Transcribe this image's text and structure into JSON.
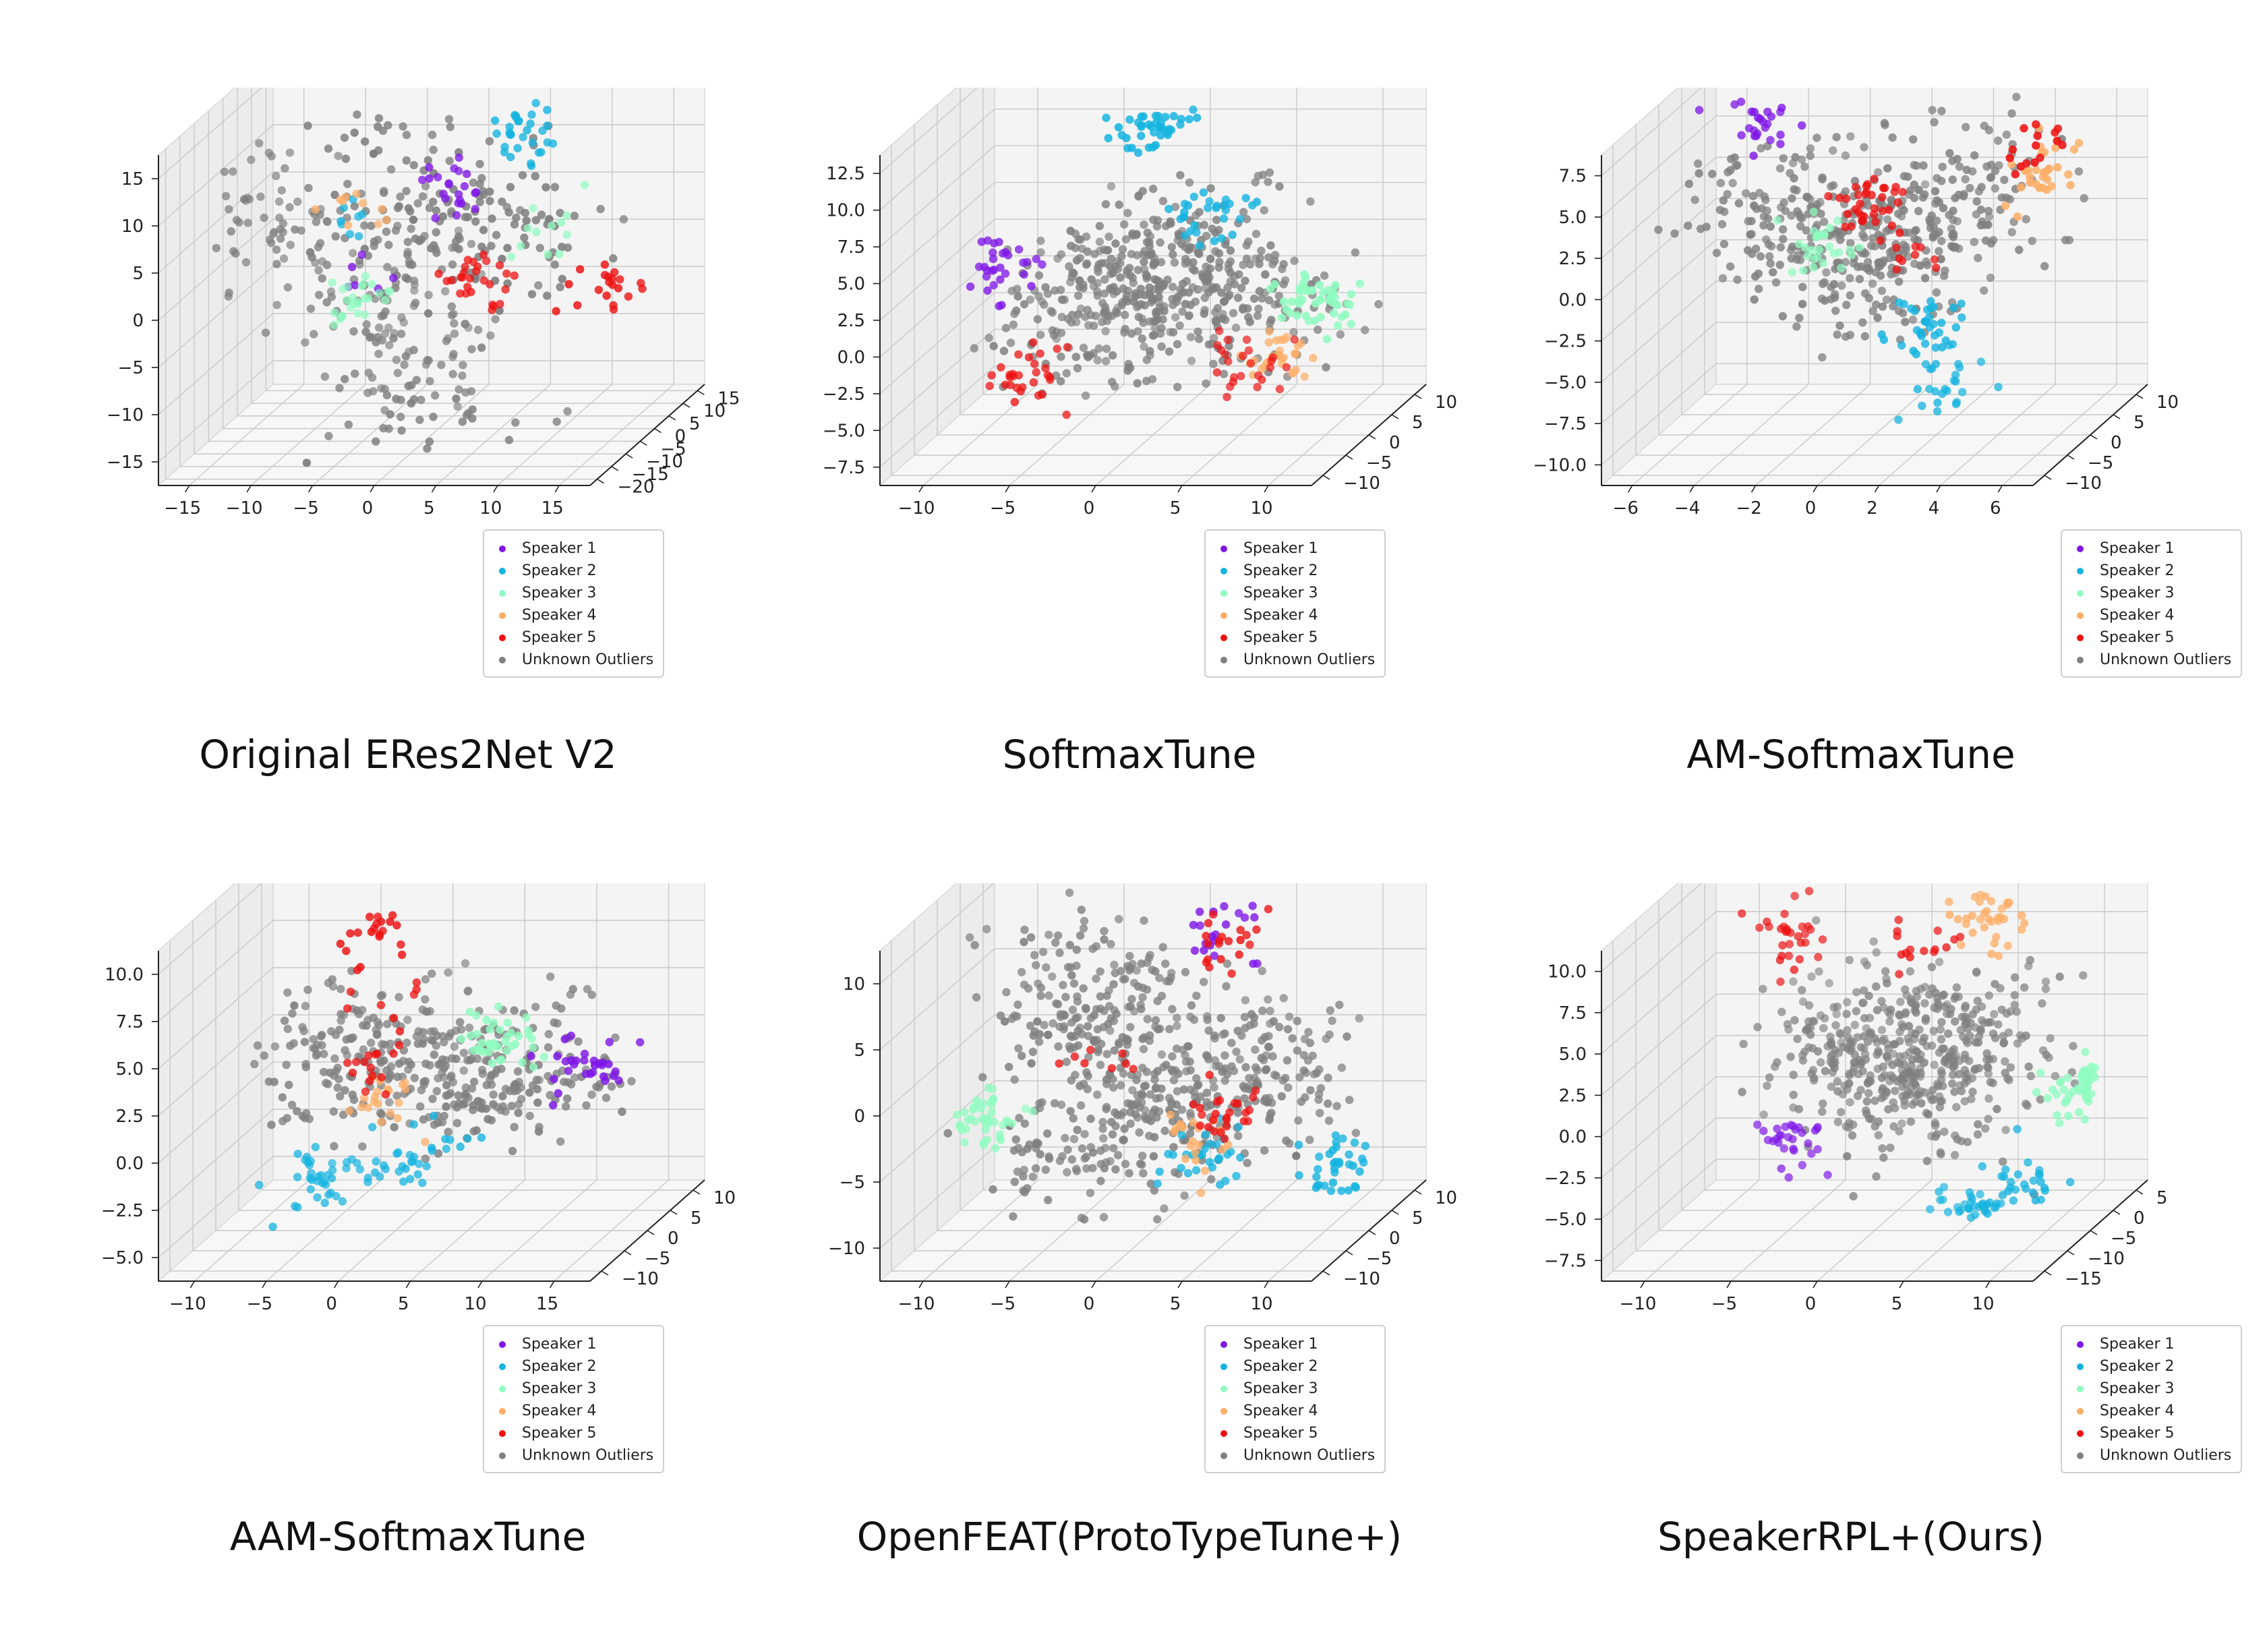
{
  "colors": {
    "Speaker 1": "#7f17e8",
    "Speaker 2": "#15b4e0",
    "Speaker 3": "#8ffcc0",
    "Speaker 4": "#ffae66",
    "Speaker 5": "#ee1111",
    "Unknown Outliers": "#808080"
  },
  "legend": [
    "Speaker 1",
    "Speaker 2",
    "Speaker 3",
    "Speaker 4",
    "Speaker 5",
    "Unknown Outliers"
  ],
  "chart_data": [
    {
      "type": "scatter",
      "title": "Original ERes2Net V2",
      "ticks": {
        "x": [
          "−15",
          "−10",
          "−5",
          "0",
          "5",
          "10",
          "15"
        ],
        "y": [
          "−20",
          "−15",
          "−10",
          "−5",
          "0",
          "5",
          "10",
          "15"
        ],
        "z": [
          "−15",
          "−10",
          "−5",
          "0",
          "5",
          "10",
          "15"
        ]
      },
      "xlim": [
        -18,
        18
      ],
      "ylim": [
        -22,
        18
      ],
      "zlim": [
        -18,
        18
      ],
      "series": [
        {
          "name": "Speaker 1",
          "clusters": [
            {
              "x": 2,
              "y": -2,
              "z": 9,
              "n": 22
            },
            {
              "x": -5,
              "y": -3,
              "z": 0,
              "n": 6
            }
          ]
        },
        {
          "name": "Speaker 2",
          "clusters": [
            {
              "x": 8,
              "y": -3,
              "z": 15,
              "n": 30
            },
            {
              "x": -8,
              "y": 1,
              "z": 5,
              "n": 8
            }
          ]
        },
        {
          "name": "Speaker 3",
          "clusters": [
            {
              "x": -8,
              "y": 5,
              "z": -5,
              "n": 26
            },
            {
              "x": 8,
              "y": 2,
              "z": 3,
              "n": 12
            }
          ]
        },
        {
          "name": "Speaker 4",
          "clusters": [
            {
              "x": -7,
              "y": 2,
              "z": 6,
              "n": 10
            }
          ]
        },
        {
          "name": "Speaker 5",
          "clusters": [
            {
              "x": 3,
              "y": 0,
              "z": -2,
              "n": 28
            },
            {
              "x": 15,
              "y": -5,
              "z": -1,
              "n": 20
            }
          ]
        },
        {
          "name": "Unknown Outliers",
          "clusters": [
            {
              "x": -14,
              "y": 3,
              "z": 4,
              "n": 60
            },
            {
              "x": -2,
              "y": -8,
              "z": 14,
              "n": 40
            },
            {
              "x": -4,
              "y": 4,
              "z": -8,
              "n": 80
            },
            {
              "x": 0,
              "y": -4,
              "z": -12,
              "n": 50
            },
            {
              "x": 7,
              "y": -10,
              "z": 6,
              "n": 90
            },
            {
              "x": -3,
              "y": -4,
              "z": 4,
              "n": 60
            }
          ]
        }
      ]
    },
    {
      "type": "scatter",
      "title": "SoftmaxTune",
      "ticks": {
        "x": [
          "−10",
          "−5",
          "0",
          "5",
          "10"
        ],
        "y": [
          "−10",
          "−5",
          "0",
          "5",
          "10"
        ],
        "z": [
          "−7.5",
          "−5.0",
          "−2.5",
          "0.0",
          "2.5",
          "5.0",
          "7.5",
          "10.0",
          "12.5"
        ]
      },
      "xlim": [
        -13,
        13
      ],
      "ylim": [
        -13,
        13
      ],
      "zlim": [
        -8.5,
        14
      ],
      "series": [
        {
          "name": "Speaker 1",
          "clusters": [
            {
              "x": -9,
              "y": 0,
              "z": 3,
              "n": 30
            }
          ]
        },
        {
          "name": "Speaker 2",
          "clusters": [
            {
              "x": 1,
              "y": -4,
              "z": 14,
              "n": 40
            },
            {
              "x": 4,
              "y": -2,
              "z": 7,
              "n": 30
            }
          ]
        },
        {
          "name": "Speaker 3",
          "clusters": [
            {
              "x": 11,
              "y": -4,
              "z": 2,
              "n": 50
            }
          ]
        },
        {
          "name": "Speaker 4",
          "clusters": [
            {
              "x": 7,
              "y": 3,
              "z": -4,
              "n": 30
            }
          ]
        },
        {
          "name": "Speaker 5",
          "clusters": [
            {
              "x": -8,
              "y": 2,
              "z": -5,
              "n": 30
            },
            {
              "x": 4,
              "y": 5,
              "z": -5,
              "n": 25
            }
          ]
        },
        {
          "name": "Unknown Outliers",
          "clusters": [
            {
              "x": -2,
              "y": 0,
              "z": 2,
              "n": 150
            },
            {
              "x": 3,
              "y": -3,
              "z": 4,
              "n": 150
            },
            {
              "x": -4,
              "y": 3,
              "z": -2,
              "n": 100
            },
            {
              "x": 6,
              "y": 0,
              "z": 0,
              "n": 100
            }
          ]
        }
      ]
    },
    {
      "type": "scatter",
      "title": "AM-SoftmaxTune",
      "ticks": {
        "x": [
          "−6",
          "−4",
          "−2",
          "0",
          "2",
          "4",
          "6"
        ],
        "y": [
          "−10",
          "−5",
          "0",
          "5",
          "10"
        ],
        "z": [
          "−10.0",
          "−7.5",
          "−5.0",
          "−2.5",
          "0.0",
          "2.5",
          "5.0",
          "7.5"
        ]
      },
      "xlim": [
        -7,
        7
      ],
      "ylim": [
        -12,
        12
      ],
      "zlim": [
        -10.5,
        9
      ],
      "series": [
        {
          "name": "Speaker 1",
          "clusters": [
            {
              "x": -4,
              "y": 0,
              "z": 8,
              "n": 25
            }
          ]
        },
        {
          "name": "Speaker 2",
          "clusters": [
            {
              "x": 2,
              "y": -2,
              "z": -4,
              "n": 35
            },
            {
              "x": 2,
              "y": 2,
              "z": -8,
              "n": 25
            }
          ]
        },
        {
          "name": "Speaker 3",
          "clusters": [
            {
              "x": -2,
              "y": 2,
              "z": 0,
              "n": 30
            }
          ]
        },
        {
          "name": "Speaker 4",
          "clusters": [
            {
              "x": 6,
              "y": -4,
              "z": 6,
              "n": 30
            }
          ]
        },
        {
          "name": "Speaker 5",
          "clusters": [
            {
              "x": 0,
              "y": 0,
              "z": 3,
              "n": 35
            },
            {
              "x": 6,
              "y": -6,
              "z": 8,
              "n": 15
            },
            {
              "x": 1,
              "y": 1,
              "z": 0,
              "n": 10
            }
          ]
        },
        {
          "name": "Unknown Outliers",
          "clusters": [
            {
              "x": -3,
              "y": 0,
              "z": 3,
              "n": 120
            },
            {
              "x": 0,
              "y": 0,
              "z": 0,
              "n": 200
            },
            {
              "x": 3,
              "y": -2,
              "z": 4,
              "n": 120
            }
          ]
        }
      ]
    },
    {
      "type": "scatter",
      "title": "AAM-SoftmaxTune",
      "ticks": {
        "x": [
          "−10",
          "−5",
          "0",
          "5",
          "10",
          "15"
        ],
        "y": [
          "−10",
          "−5",
          "0",
          "5",
          "10"
        ],
        "z": [
          "−5.0",
          "−2.5",
          "0.0",
          "2.5",
          "5.0",
          "7.5",
          "10.0"
        ]
      },
      "xlim": [
        -12,
        16
      ],
      "ylim": [
        -12,
        12
      ],
      "zlim": [
        -7,
        11.5
      ],
      "series": [
        {
          "name": "Speaker 1",
          "clusters": [
            {
              "x": 13,
              "y": -3,
              "z": 3,
              "n": 30
            }
          ]
        },
        {
          "name": "Speaker 2",
          "clusters": [
            {
              "x": -6,
              "y": 3,
              "z": -5,
              "n": 40
            },
            {
              "x": 0,
              "y": 2,
              "z": -4,
              "n": 20
            },
            {
              "x": 3,
              "y": 0,
              "z": -2,
              "n": 10
            }
          ]
        },
        {
          "name": "Speaker 3",
          "clusters": [
            {
              "x": 7,
              "y": -2,
              "z": 4,
              "n": 40
            }
          ]
        },
        {
          "name": "Speaker 4",
          "clusters": [
            {
              "x": -2,
              "y": 2,
              "z": 0,
              "n": 20
            }
          ]
        },
        {
          "name": "Speaker 5",
          "clusters": [
            {
              "x": -1,
              "y": -2,
              "z": 10,
              "n": 20
            },
            {
              "x": -2,
              "y": 0,
              "z": 2,
              "n": 15
            },
            {
              "x": -1,
              "y": 0,
              "z": 6,
              "n": 8
            }
          ]
        },
        {
          "name": "Unknown Outliers",
          "clusters": [
            {
              "x": -3,
              "y": 0,
              "z": 3,
              "n": 150
            },
            {
              "x": 4,
              "y": 0,
              "z": 2,
              "n": 150
            },
            {
              "x": 10,
              "y": -2,
              "z": 2,
              "n": 80
            }
          ]
        }
      ]
    },
    {
      "type": "scatter",
      "title": "OpenFEAT(ProtoTypeTune+)",
      "ticks": {
        "x": [
          "−10",
          "−5",
          "0",
          "5",
          "10"
        ],
        "y": [
          "−10",
          "−5",
          "0",
          "5",
          "10"
        ],
        "z": [
          "−10",
          "−5",
          "0",
          "5",
          "10"
        ]
      },
      "xlim": [
        -12,
        12
      ],
      "ylim": [
        -12,
        12
      ],
      "zlim": [
        -12,
        14
      ],
      "series": [
        {
          "name": "Speaker 1",
          "clusters": [
            {
              "x": 4,
              "y": -2,
              "z": 12,
              "n": 20
            }
          ]
        },
        {
          "name": "Speaker 2",
          "clusters": [
            {
              "x": 11,
              "y": -2,
              "z": -6,
              "n": 35
            },
            {
              "x": 3,
              "y": 0,
              "z": -6,
              "n": 30
            }
          ]
        },
        {
          "name": "Speaker 3",
          "clusters": [
            {
              "x": -10,
              "y": 2,
              "z": -4,
              "n": 45
            }
          ]
        },
        {
          "name": "Speaker 4",
          "clusters": [
            {
              "x": 3,
              "y": 0,
              "z": -5,
              "n": 20
            }
          ]
        },
        {
          "name": "Speaker 5",
          "clusters": [
            {
              "x": 4,
              "y": -1,
              "z": 11,
              "n": 20
            },
            {
              "x": 4,
              "y": 0,
              "z": -3,
              "n": 25
            },
            {
              "x": -3,
              "y": 0,
              "z": 2,
              "n": 8
            }
          ]
        },
        {
          "name": "Unknown Outliers",
          "clusters": [
            {
              "x": -3,
              "y": 0,
              "z": 6,
              "n": 200
            },
            {
              "x": 0,
              "y": 0,
              "z": -2,
              "n": 150
            },
            {
              "x": 6,
              "y": 0,
              "z": 1,
              "n": 150
            },
            {
              "x": -5,
              "y": 0,
              "z": -6,
              "n": 80
            }
          ]
        }
      ]
    },
    {
      "type": "scatter",
      "title": "SpeakerRPL+(Ours)",
      "ticks": {
        "x": [
          "−10",
          "−5",
          "0",
          "5",
          "10"
        ],
        "y": [
          "−15",
          "−10",
          "−5",
          "0",
          "5"
        ],
        "z": [
          "−7.5",
          "−5.0",
          "−2.5",
          "0.0",
          "2.5",
          "5.0",
          "7.5",
          "10.0"
        ]
      },
      "xlim": [
        -13,
        11
      ],
      "ylim": [
        -17,
        7
      ],
      "zlim": [
        -9,
        11.5
      ],
      "series": [
        {
          "name": "Speaker 1",
          "clusters": [
            {
              "x": -7,
              "y": 0,
              "z": -5,
              "n": 30
            }
          ]
        },
        {
          "name": "Speaker 2",
          "clusters": [
            {
              "x": 7,
              "y": -4,
              "z": -6,
              "n": 30
            },
            {
              "x": 3,
              "y": 0,
              "z": -9,
              "n": 30
            }
          ]
        },
        {
          "name": "Speaker 3",
          "clusters": [
            {
              "x": 11,
              "y": -6,
              "z": 0,
              "n": 45
            }
          ]
        },
        {
          "name": "Speaker 4",
          "clusters": [
            {
              "x": 5,
              "y": -4,
              "z": 10,
              "n": 35
            }
          ]
        },
        {
          "name": "Speaker 5",
          "clusters": [
            {
              "x": -7,
              "y": 0,
              "z": 8,
              "n": 30
            },
            {
              "x": 1,
              "y": -3,
              "z": 8,
              "n": 15
            }
          ]
        },
        {
          "name": "Unknown Outliers",
          "clusters": [
            {
              "x": -3,
              "y": 0,
              "z": 1,
              "n": 200
            },
            {
              "x": 3,
              "y": -3,
              "z": 2,
              "n": 200
            },
            {
              "x": 0,
              "y": -2,
              "z": -2,
              "n": 100
            }
          ]
        }
      ]
    }
  ]
}
